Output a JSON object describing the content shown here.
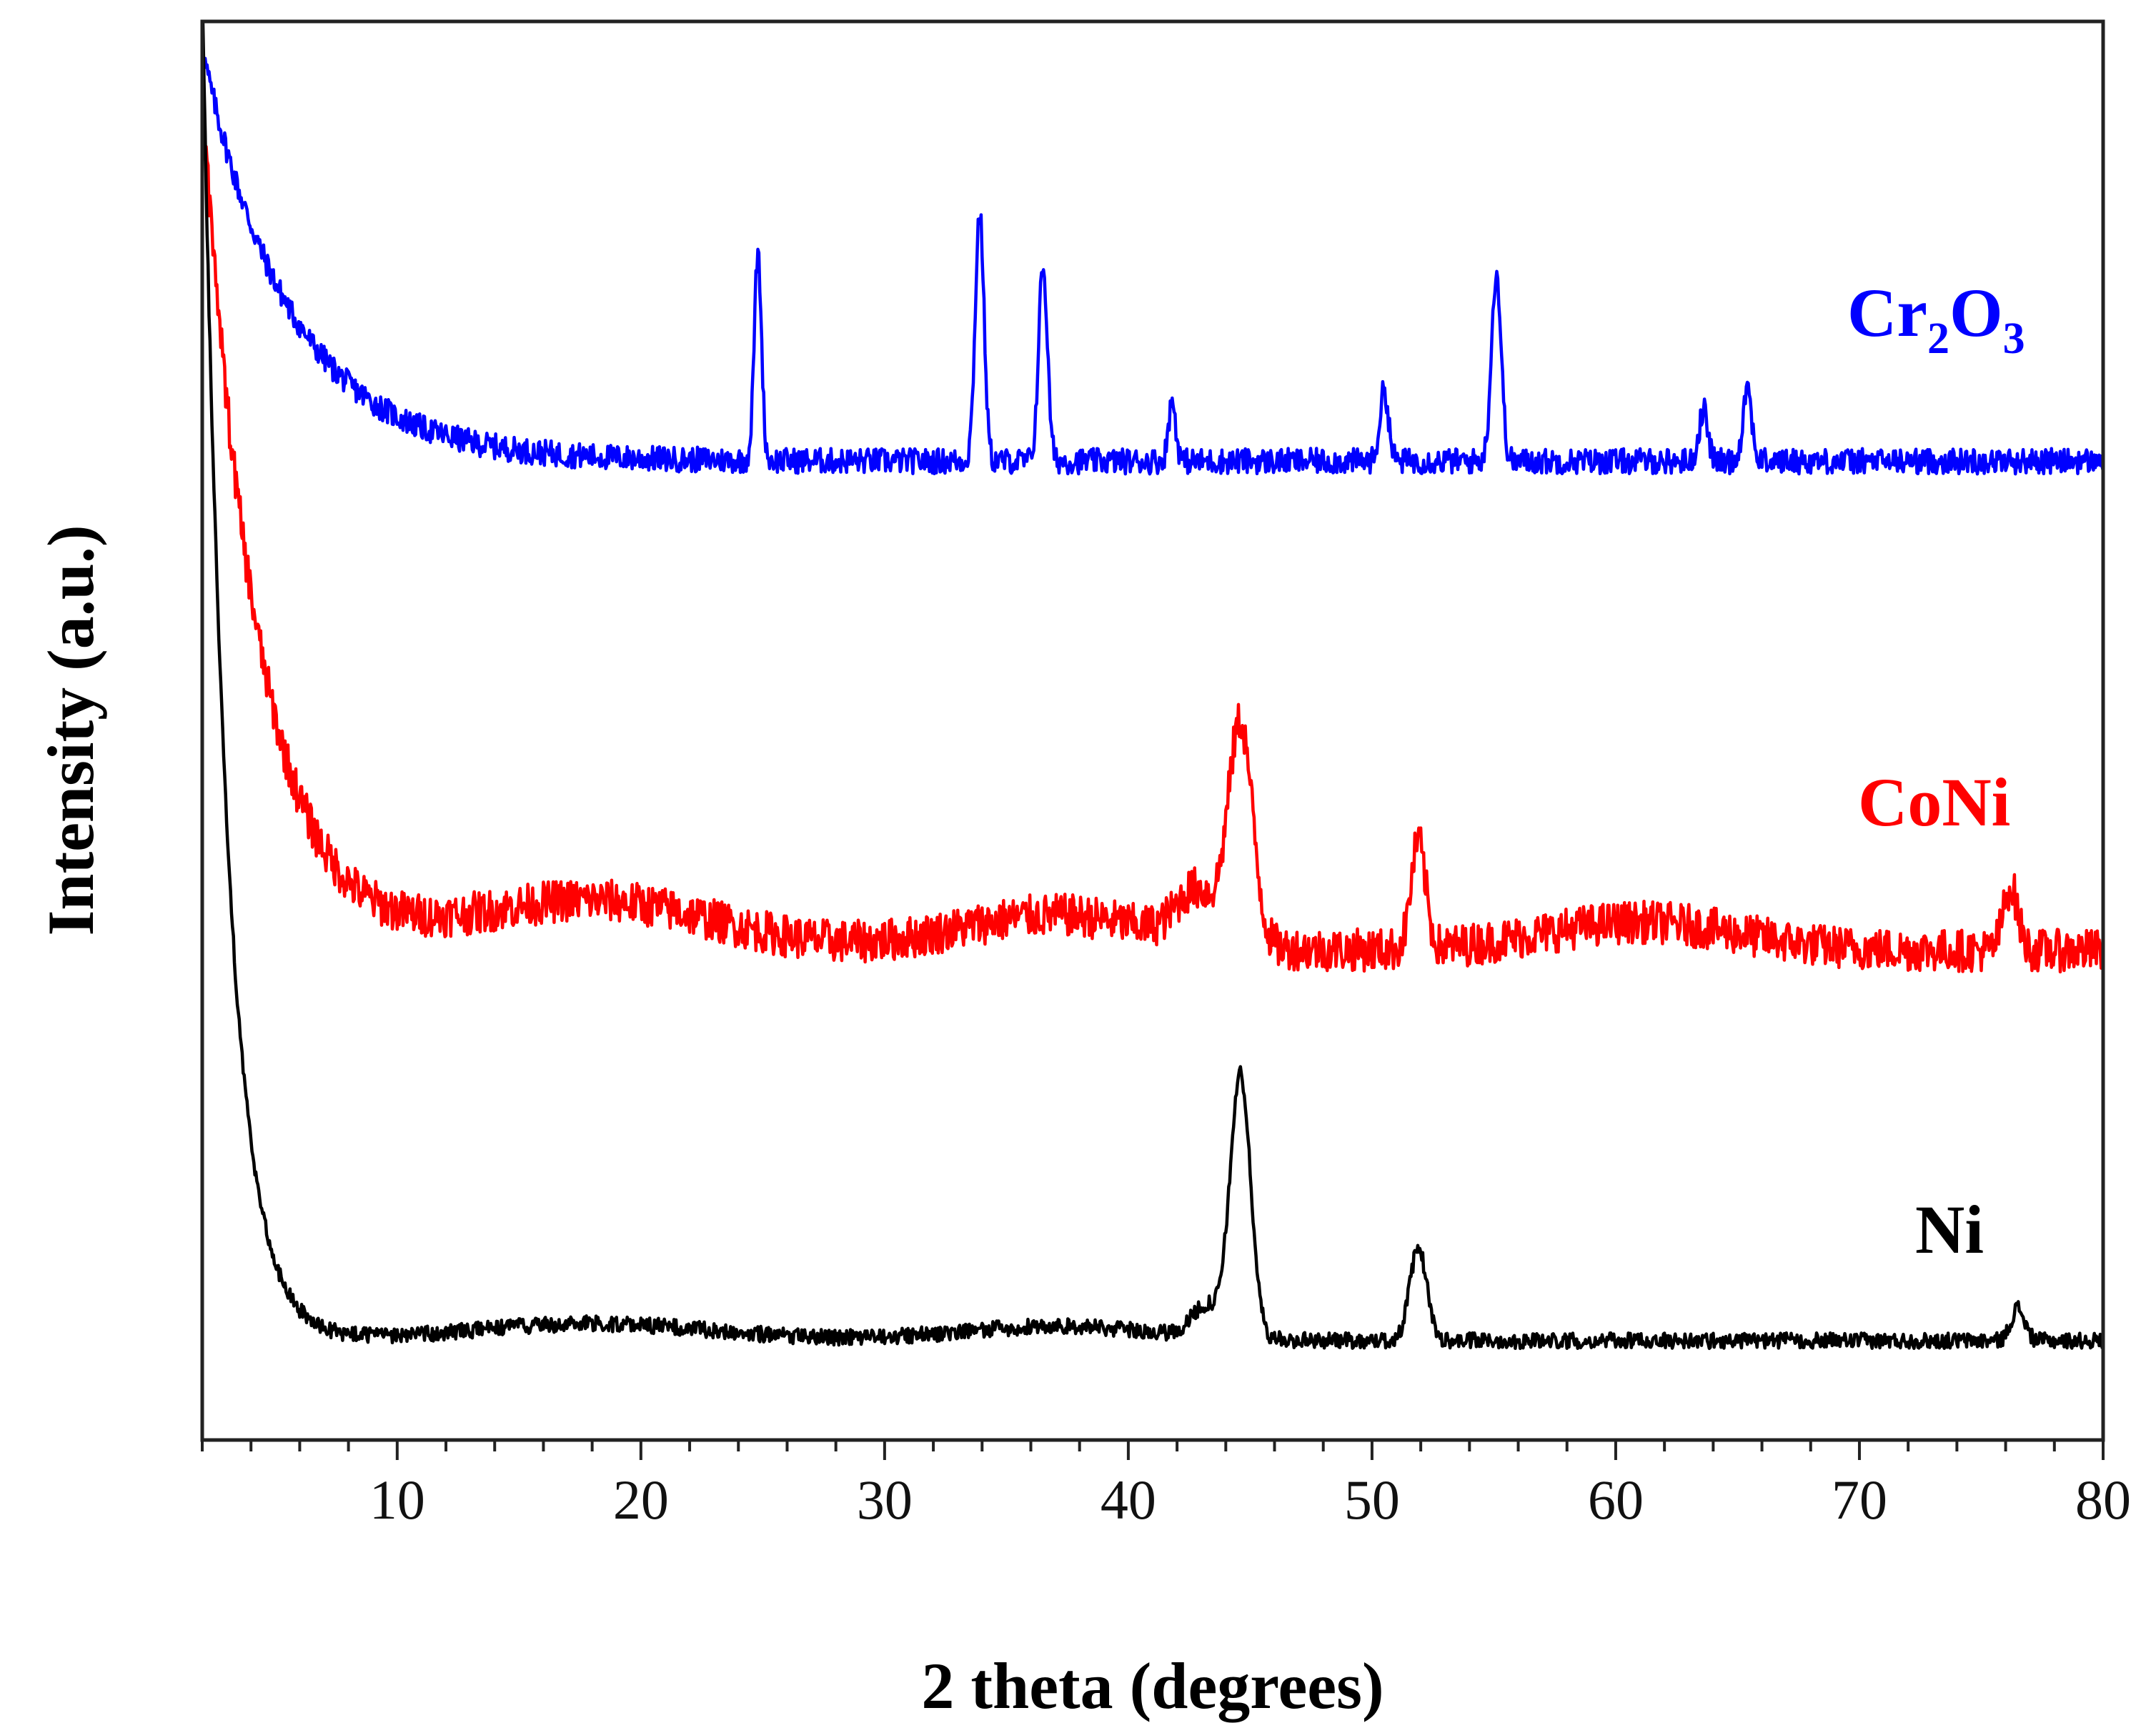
{
  "chart_data": {
    "type": "line",
    "title": "",
    "xlabel": "2 theta (degrees)",
    "ylabel": "Intensity (a.u.)",
    "xlim": [
      2,
      80
    ],
    "ylim": [
      0,
      100
    ],
    "x_ticks": [
      10,
      20,
      30,
      40,
      50,
      60,
      70,
      80
    ],
    "y_ticks_shown": false,
    "grid": false,
    "legend": "inline labels at right",
    "series": [
      {
        "name": "Cr2O3",
        "label_main": "Cr",
        "label_sub1": "2",
        "label_mid": "O",
        "label_sub2": "3",
        "color": "#0000ff",
        "baseline": 69,
        "noise": 0.9,
        "decay": {
          "amplitude": 29,
          "scale": 3.6
        },
        "peaks": [
          {
            "x": 24.8,
            "height": 14.5,
            "width": 0.15
          },
          {
            "x": 33.9,
            "height": 17.5,
            "width": 0.18
          },
          {
            "x": 36.5,
            "height": 13.8,
            "width": 0.18
          },
          {
            "x": 41.8,
            "height": 4.2,
            "width": 0.15
          },
          {
            "x": 50.5,
            "height": 5.0,
            "width": 0.18
          },
          {
            "x": 55.1,
            "height": 13.2,
            "width": 0.2
          },
          {
            "x": 63.6,
            "height": 3.6,
            "width": 0.18
          },
          {
            "x": 65.4,
            "height": 5.2,
            "width": 0.18
          }
        ]
      },
      {
        "name": "CoNi",
        "label": "CoNi",
        "color": "#ff0000",
        "baseline": 34.5,
        "noise": 1.5,
        "decay": {
          "amplitude": 60,
          "scale": 2.3
        },
        "bumps": [
          {
            "x": 18,
            "height": 3.5,
            "width": 5
          },
          {
            "x": 37,
            "height": 2.5,
            "width": 4
          },
          {
            "x": 61,
            "height": 2.0,
            "width": 4
          }
        ],
        "peaks": [
          {
            "x": 44.6,
            "height": 15.5,
            "width": 0.5
          },
          {
            "x": 42.8,
            "height": 3.5,
            "width": 0.8
          },
          {
            "x": 51.9,
            "height": 7.5,
            "width": 0.3
          },
          {
            "x": 76.2,
            "height": 4.5,
            "width": 0.3
          }
        ]
      },
      {
        "name": "Ni",
        "label": "Ni",
        "color": "#000000",
        "baseline": 7.0,
        "noise": 0.55,
        "decay": {
          "amplitude": 95,
          "scale": 1.05
        },
        "bumps": [
          {
            "x": 18,
            "height": 1.2,
            "width": 5
          },
          {
            "x": 37,
            "height": 1.0,
            "width": 4
          }
        ],
        "peaks": [
          {
            "x": 44.6,
            "height": 18.5,
            "width": 0.42
          },
          {
            "x": 43.2,
            "height": 2.2,
            "width": 0.6
          },
          {
            "x": 51.9,
            "height": 6.5,
            "width": 0.35
          },
          {
            "x": 76.5,
            "height": 2.3,
            "width": 0.28
          }
        ]
      }
    ]
  }
}
